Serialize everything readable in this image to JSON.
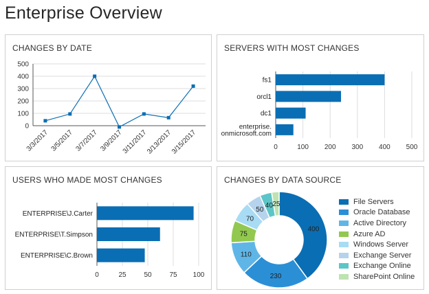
{
  "page": {
    "title": "Enterprise Overview"
  },
  "panels": {
    "changes_by_date": {
      "title": "CHANGES BY DATE"
    },
    "servers": {
      "title": "SERVERS WITH MOST CHANGES"
    },
    "users": {
      "title": "USERS WHO MADE MOST CHANGES"
    },
    "data_source": {
      "title": "CHANGES BY DATA SOURCE"
    }
  },
  "colors": {
    "accent": "#0a6eb4",
    "grid": "#dcdcdc",
    "axis": "#555555"
  },
  "chart_data": [
    {
      "type": "line",
      "x": [
        "3/3/2017",
        "3/5/2017",
        "3/7/2017",
        "3/9/2017",
        "3/11/2017",
        "3/13/2017",
        "3/15/2017"
      ],
      "series": [
        {
          "values": [
            40,
            95,
            400,
            -10,
            95,
            65,
            320
          ]
        }
      ],
      "yticks": [
        0,
        100,
        200,
        300,
        400,
        500
      ],
      "ylim": [
        0,
        500
      ],
      "grid": true
    },
    {
      "type": "bar",
      "orientation": "horizontal",
      "categories": [
        "fs1",
        "orcl1",
        "dc1",
        "enterprise.\nonmicrosoft.com"
      ],
      "values": [
        400,
        240,
        110,
        65
      ],
      "xticks": [
        0,
        100,
        200,
        300,
        400,
        500
      ],
      "xlim": [
        0,
        500
      ],
      "grid": true
    },
    {
      "type": "bar",
      "orientation": "horizontal",
      "categories": [
        "ENTERPRISE\\J.Carter",
        "ENTERPRISE\\T.Simpson",
        "ENTERPRISE\\C.Brown"
      ],
      "values": [
        95,
        62,
        47
      ],
      "xticks": [
        0,
        25,
        50,
        75,
        100
      ],
      "xlim": [
        0,
        100
      ],
      "grid": true
    },
    {
      "type": "pie",
      "donut": true,
      "categories": [
        "File Servers",
        "Oracle Database",
        "Active Directory",
        "Azure AD",
        "Windows Server",
        "Exchange Server",
        "Exchange Online",
        "SharePoint Online"
      ],
      "values": [
        400,
        230,
        110,
        75,
        70,
        50,
        40,
        25
      ],
      "colors": [
        "#0a6eb4",
        "#2b8fd6",
        "#5fb6e6",
        "#92c84f",
        "#a8dcf4",
        "#b5d3ec",
        "#5cc5c7",
        "#bde3b0"
      ],
      "legend": "right"
    }
  ]
}
